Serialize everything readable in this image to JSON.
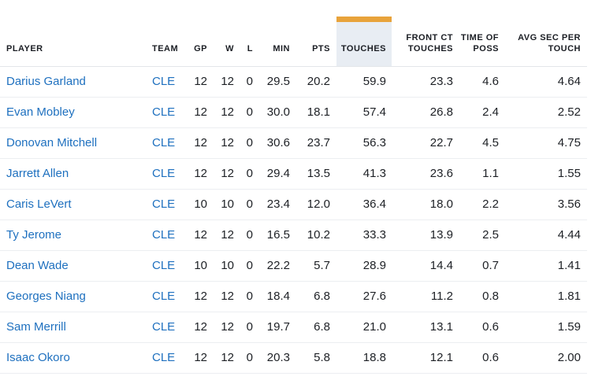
{
  "colors": {
    "sort_indicator_gold": "#e8a33b",
    "sorted_header_bg": "#e8edf3",
    "link_blue": "#1e70bf",
    "header_text": "#1b1e24",
    "cell_text": "#1d2025",
    "row_divider": "#eceef1"
  },
  "table": {
    "sorted_column": "touches",
    "columns": [
      {
        "key": "player",
        "label": "PLAYER"
      },
      {
        "key": "team",
        "label": "TEAM"
      },
      {
        "key": "gp",
        "label": "GP"
      },
      {
        "key": "w",
        "label": "W"
      },
      {
        "key": "l",
        "label": "L"
      },
      {
        "key": "min",
        "label": "MIN"
      },
      {
        "key": "pts",
        "label": "PTS"
      },
      {
        "key": "touches",
        "label": "TOUCHES"
      },
      {
        "key": "front_ct_touches",
        "label": "FRONT CT TOUCHES"
      },
      {
        "key": "time_of_poss",
        "label": "TIME OF POSS"
      },
      {
        "key": "avg_sec_per_touch",
        "label": "AVG SEC PER TOUCH"
      }
    ],
    "rows": [
      {
        "player": "Darius Garland",
        "team": "CLE",
        "gp": "12",
        "w": "12",
        "l": "0",
        "min": "29.5",
        "pts": "20.2",
        "touches": "59.9",
        "front_ct_touches": "23.3",
        "time_of_poss": "4.6",
        "avg_sec_per_touch": "4.64"
      },
      {
        "player": "Evan Mobley",
        "team": "CLE",
        "gp": "12",
        "w": "12",
        "l": "0",
        "min": "30.0",
        "pts": "18.1",
        "touches": "57.4",
        "front_ct_touches": "26.8",
        "time_of_poss": "2.4",
        "avg_sec_per_touch": "2.52"
      },
      {
        "player": "Donovan Mitchell",
        "team": "CLE",
        "gp": "12",
        "w": "12",
        "l": "0",
        "min": "30.6",
        "pts": "23.7",
        "touches": "56.3",
        "front_ct_touches": "22.7",
        "time_of_poss": "4.5",
        "avg_sec_per_touch": "4.75"
      },
      {
        "player": "Jarrett Allen",
        "team": "CLE",
        "gp": "12",
        "w": "12",
        "l": "0",
        "min": "29.4",
        "pts": "13.5",
        "touches": "41.3",
        "front_ct_touches": "23.6",
        "time_of_poss": "1.1",
        "avg_sec_per_touch": "1.55"
      },
      {
        "player": "Caris LeVert",
        "team": "CLE",
        "gp": "10",
        "w": "10",
        "l": "0",
        "min": "23.4",
        "pts": "12.0",
        "touches": "36.4",
        "front_ct_touches": "18.0",
        "time_of_poss": "2.2",
        "avg_sec_per_touch": "3.56"
      },
      {
        "player": "Ty Jerome",
        "team": "CLE",
        "gp": "12",
        "w": "12",
        "l": "0",
        "min": "16.5",
        "pts": "10.2",
        "touches": "33.3",
        "front_ct_touches": "13.9",
        "time_of_poss": "2.5",
        "avg_sec_per_touch": "4.44"
      },
      {
        "player": "Dean Wade",
        "team": "CLE",
        "gp": "10",
        "w": "10",
        "l": "0",
        "min": "22.2",
        "pts": "5.7",
        "touches": "28.9",
        "front_ct_touches": "14.4",
        "time_of_poss": "0.7",
        "avg_sec_per_touch": "1.41"
      },
      {
        "player": "Georges Niang",
        "team": "CLE",
        "gp": "12",
        "w": "12",
        "l": "0",
        "min": "18.4",
        "pts": "6.8",
        "touches": "27.6",
        "front_ct_touches": "11.2",
        "time_of_poss": "0.8",
        "avg_sec_per_touch": "1.81"
      },
      {
        "player": "Sam Merrill",
        "team": "CLE",
        "gp": "12",
        "w": "12",
        "l": "0",
        "min": "19.7",
        "pts": "6.8",
        "touches": "21.0",
        "front_ct_touches": "13.1",
        "time_of_poss": "0.6",
        "avg_sec_per_touch": "1.59"
      },
      {
        "player": "Isaac Okoro",
        "team": "CLE",
        "gp": "12",
        "w": "12",
        "l": "0",
        "min": "20.3",
        "pts": "5.8",
        "touches": "18.8",
        "front_ct_touches": "12.1",
        "time_of_poss": "0.6",
        "avg_sec_per_touch": "2.00"
      }
    ]
  }
}
